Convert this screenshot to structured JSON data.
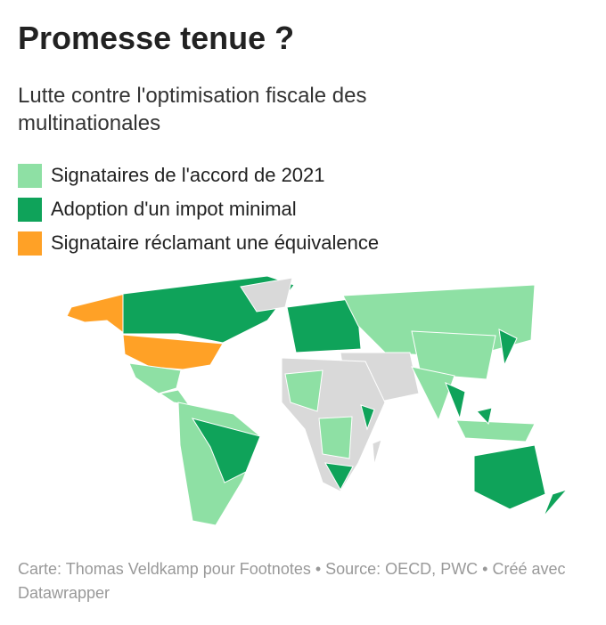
{
  "header": {
    "title": "Promesse tenue ?",
    "subtitle": "Lutte contre l'optimisation fiscale des multinationales"
  },
  "legend": [
    {
      "label": "Signataires de l'accord de 2021",
      "color": "#8ee0a4"
    },
    {
      "label": "Adoption d'un impot minimal",
      "color": "#0fa35a"
    },
    {
      "label": "Signataire réclamant une équivalence",
      "color": "#ffa126"
    }
  ],
  "footer": "Carte: Thomas Veldkamp pour Footnotes • Source: OECD, PWC • Créé avec Datawrapper"
}
